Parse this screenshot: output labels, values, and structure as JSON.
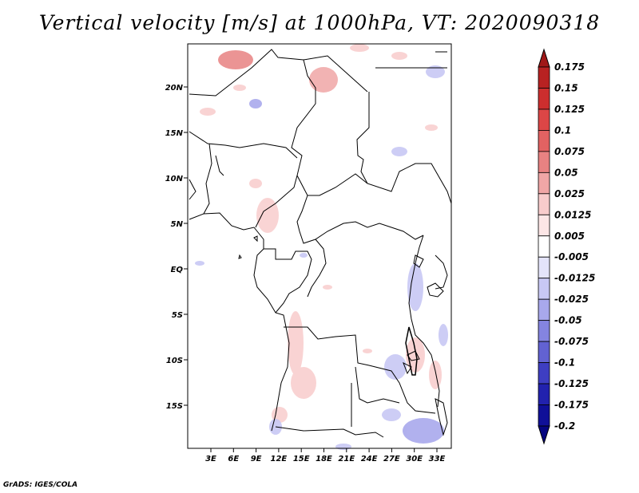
{
  "title": "Vertical velocity [m/s] at 1000hPa, VT: 2020090318",
  "footer": "GrADS: IGES/COLA",
  "map": {
    "lat_labels": [
      "20N",
      "15N",
      "10N",
      "5N",
      "EQ",
      "5S",
      "10S",
      "15S"
    ],
    "lon_labels": [
      "3E",
      "6E",
      "9E",
      "12E",
      "15E",
      "18E",
      "21E",
      "24E",
      "27E",
      "30E",
      "33E"
    ]
  },
  "colorbar": {
    "labels": [
      "0.175",
      "0.15",
      "0.125",
      "0.1",
      "0.075",
      "0.05",
      "0.025",
      "0.0125",
      "0.005",
      "-0.005",
      "-0.0125",
      "-0.025",
      "-0.05",
      "-0.075",
      "-0.1",
      "-0.125",
      "-0.175",
      "-0.2"
    ],
    "colors": [
      "#a01818",
      "#b82222",
      "#cc2e2e",
      "#dc4646",
      "#e26262",
      "#e88282",
      "#f0a6a6",
      "#f8cccc",
      "#fce6e6",
      "#ffffff",
      "#e4e4fa",
      "#c8c8f4",
      "#a8a8ec",
      "#8484e0",
      "#6262d2",
      "#3e3ec2",
      "#2222ae",
      "#101098",
      "#060680"
    ]
  },
  "colors": {
    "map_border": "#000000",
    "positive": "#f4b4b4",
    "negative": "#b4b4f0"
  }
}
